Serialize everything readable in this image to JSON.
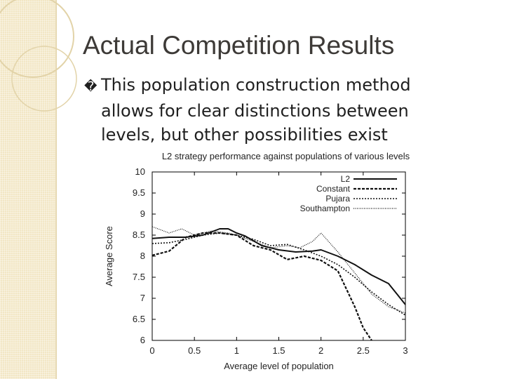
{
  "slide": {
    "title": "Actual Competition Results",
    "bullet_glyph": "�",
    "bullet_text": "This population construction method allows for clear distinctions between levels, but other possibilities exist"
  },
  "colors": {
    "stripe": "#f2e6c4",
    "title": "#3d3a37",
    "ring": "#e2d3a8"
  },
  "chart_data": {
    "type": "line",
    "title": "L2 strategy performance against populations of various levels",
    "xlabel": "Average level of population",
    "ylabel": "Average Score",
    "xlim": [
      0,
      3
    ],
    "ylim": [
      6,
      10
    ],
    "x_ticks": [
      0,
      0.5,
      1,
      1.5,
      2,
      2.5,
      3
    ],
    "x_tick_labels": [
      "0",
      "0.5",
      "1",
      "1.5",
      "2",
      "2.5",
      "3"
    ],
    "y_ticks": [
      6,
      6.5,
      7,
      7.5,
      8,
      8.5,
      9,
      9.5,
      10
    ],
    "y_tick_labels": [
      "6",
      "6.5",
      "7",
      "7.5",
      "8",
      "8.5",
      "9",
      "9.5",
      "10"
    ],
    "legend_position": "top-right",
    "series": [
      {
        "name": "L2",
        "style": "solid",
        "x": [
          0,
          0.2,
          0.4,
          0.6,
          0.8,
          0.9,
          1.0,
          1.1,
          1.3,
          1.5,
          1.7,
          1.9,
          2.0,
          2.2,
          2.4,
          2.6,
          2.8,
          2.9,
          3.0
        ],
        "y": [
          8.42,
          8.45,
          8.45,
          8.5,
          8.65,
          8.65,
          8.55,
          8.48,
          8.25,
          8.15,
          8.1,
          8.12,
          8.15,
          8.0,
          7.8,
          7.55,
          7.35,
          7.1,
          6.85
        ]
      },
      {
        "name": "Constant",
        "style": "dashed",
        "x": [
          0,
          0.2,
          0.4,
          0.6,
          0.8,
          1.0,
          1.2,
          1.4,
          1.6,
          1.8,
          2.0,
          2.2,
          2.4,
          2.5,
          2.6
        ],
        "y": [
          8.02,
          8.12,
          8.45,
          8.55,
          8.55,
          8.5,
          8.25,
          8.15,
          7.92,
          8.0,
          7.9,
          7.65,
          6.8,
          6.3,
          6.0
        ]
      },
      {
        "name": "Pujara",
        "style": "dotted",
        "x": [
          0,
          0.2,
          0.4,
          0.6,
          0.8,
          1.0,
          1.2,
          1.4,
          1.6,
          1.8,
          2.0,
          2.2,
          2.4,
          2.6,
          2.8,
          3.0
        ],
        "y": [
          8.3,
          8.32,
          8.4,
          8.5,
          8.55,
          8.5,
          8.4,
          8.25,
          8.28,
          8.15,
          8.0,
          7.8,
          7.5,
          7.15,
          6.85,
          6.6
        ]
      },
      {
        "name": "Southampton",
        "style": "densedot",
        "x": [
          0,
          0.2,
          0.35,
          0.5,
          0.7,
          0.9,
          1.0,
          1.2,
          1.4,
          1.6,
          1.75,
          1.9,
          2.0,
          2.2,
          2.4,
          2.6,
          2.8,
          3.0
        ],
        "y": [
          8.7,
          8.55,
          8.65,
          8.5,
          8.6,
          8.55,
          8.5,
          8.35,
          8.2,
          8.25,
          8.2,
          8.35,
          8.55,
          8.1,
          7.6,
          7.1,
          6.8,
          6.65
        ]
      }
    ]
  }
}
